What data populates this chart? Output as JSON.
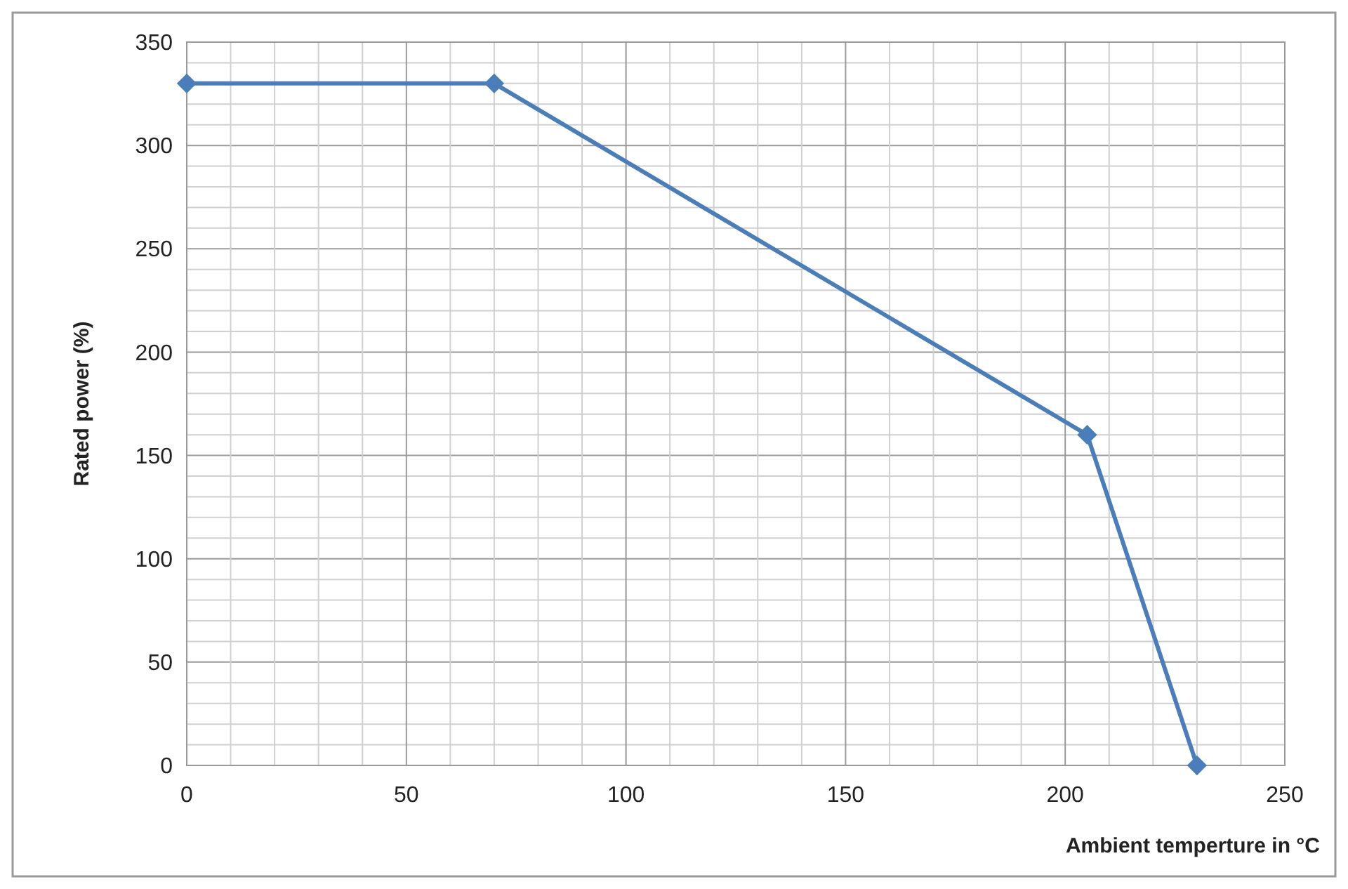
{
  "chart_data": {
    "type": "line",
    "xlabel": "Ambient temperture in °C",
    "ylabel": "Rated power (%)",
    "x": [
      0,
      70,
      205,
      230
    ],
    "series": [
      {
        "color": "#4a7ebb",
        "values": [
          330,
          330,
          160,
          0
        ]
      }
    ],
    "xlim": [
      0,
      250
    ],
    "ylim": [
      0,
      350
    ],
    "xticks": [
      0,
      {
        "value": 10,
        "label": null
      },
      {
        "value": 20,
        "label": null
      },
      {
        "value": 30,
        "label": null
      },
      {
        "value": 40,
        "label": null
      },
      50,
      {
        "value": 60,
        "label": null
      },
      {
        "value": 70,
        "label": null
      },
      {
        "value": 80,
        "label": null
      },
      {
        "value": 90,
        "label": null
      },
      100,
      {
        "value": 110,
        "label": null
      },
      {
        "value": 120,
        "label": null
      },
      {
        "value": 130,
        "label": null
      },
      {
        "value": 140,
        "label": null
      },
      150,
      {
        "value": 160,
        "label": null
      },
      {
        "value": 170,
        "label": null
      },
      {
        "value": 180,
        "label": null
      },
      {
        "value": 190,
        "label": null
      },
      200,
      {
        "value": 210,
        "label": null
      },
      {
        "value": 220,
        "label": null
      },
      {
        "value": 230,
        "label": null
      },
      {
        "value": 240,
        "label": null
      },
      250
    ],
    "yticks": [
      0,
      {
        "value": 10,
        "label": null
      },
      {
        "value": 20,
        "label": null
      },
      {
        "value": 30,
        "label": null
      },
      {
        "value": 40,
        "label": null
      },
      50,
      {
        "value": 60,
        "label": null
      },
      {
        "value": 70,
        "label": null
      },
      {
        "value": 80,
        "label": null
      },
      {
        "value": 90,
        "label": null
      },
      100,
      {
        "value": 110,
        "label": null
      },
      {
        "value": 120,
        "label": null
      },
      {
        "value": 130,
        "label": null
      },
      {
        "value": 140,
        "label": null
      },
      150,
      {
        "value": 160,
        "label": null
      },
      {
        "value": 170,
        "label": null
      },
      {
        "value": 180,
        "label": null
      },
      {
        "value": 190,
        "label": null
      },
      200,
      {
        "value": 210,
        "label": null
      },
      {
        "value": 220,
        "label": null
      },
      {
        "value": 230,
        "label": null
      },
      {
        "value": 240,
        "label": null
      },
      250,
      {
        "value": 260,
        "label": null
      },
      {
        "value": 270,
        "label": null
      },
      {
        "value": 280,
        "label": null
      },
      {
        "value": 290,
        "label": null
      },
      300,
      {
        "value": 310,
        "label": null
      },
      {
        "value": 320,
        "label": null
      },
      {
        "value": 330,
        "label": null
      },
      {
        "value": 340,
        "label": null
      },
      350
    ],
    "grid": true,
    "marker": "diamond",
    "line_style": "solid"
  }
}
